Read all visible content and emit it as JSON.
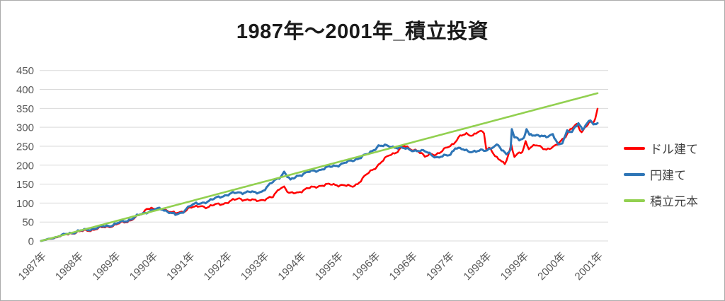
{
  "chart_data": {
    "type": "line",
    "title": "1987年～2001年_積立投資",
    "xlabel": "",
    "ylabel": "",
    "ylim": [
      0,
      450
    ],
    "y_ticks": [
      0,
      50,
      100,
      150,
      200,
      250,
      300,
      350,
      400,
      450
    ],
    "x_tick_labels": [
      "1987年",
      "1988年",
      "1989年",
      "1990年",
      "1991年",
      "1992年",
      "1993年",
      "1994年",
      "1995年",
      "1996年",
      "1996年",
      "1997年",
      "1998年",
      "1999年",
      "2000年",
      "2001年"
    ],
    "x_range_months": [
      0,
      174
    ],
    "grid": "horizontal-only",
    "legend_position": "right",
    "series": [
      {
        "id": "dollar",
        "name": "ドル建て",
        "color": "#FF0000",
        "points": [
          [
            0,
            0
          ],
          [
            5,
            10
          ],
          [
            9.5,
            21
          ],
          [
            14,
            27
          ],
          [
            18,
            33
          ],
          [
            23,
            42
          ],
          [
            27,
            52
          ],
          [
            29,
            60
          ],
          [
            32,
            73
          ],
          [
            33,
            88
          ],
          [
            35,
            86
          ],
          [
            36.5,
            82
          ],
          [
            38,
            84
          ],
          [
            40,
            80
          ],
          [
            42,
            72
          ],
          [
            43.5,
            74
          ],
          [
            45,
            80
          ],
          [
            46.5,
            90
          ],
          [
            48,
            88
          ],
          [
            50,
            92
          ],
          [
            52,
            90
          ],
          [
            54.5,
            95
          ],
          [
            57,
            99
          ],
          [
            59,
            104
          ],
          [
            62,
            112
          ],
          [
            65,
            108
          ],
          [
            67,
            106
          ],
          [
            71,
            112
          ],
          [
            72.5,
            115
          ],
          [
            74.5,
            140
          ],
          [
            76,
            144
          ],
          [
            77.5,
            124
          ],
          [
            80,
            128
          ],
          [
            83,
            137
          ],
          [
            87,
            146
          ],
          [
            91,
            149
          ],
          [
            93.5,
            148
          ],
          [
            97,
            143
          ],
          [
            99,
            152
          ],
          [
            102.5,
            180
          ],
          [
            106,
            205
          ],
          [
            109,
            227
          ],
          [
            111,
            235
          ],
          [
            113.5,
            250
          ],
          [
            115,
            244
          ],
          [
            117.5,
            240
          ],
          [
            120,
            221
          ],
          [
            122,
            232
          ],
          [
            123.5,
            228
          ],
          [
            125,
            233
          ],
          [
            127,
            248
          ],
          [
            129,
            258
          ],
          [
            131,
            275
          ],
          [
            133,
            283
          ],
          [
            135,
            280
          ],
          [
            137,
            288
          ],
          [
            138.5,
            285
          ],
          [
            139.2,
            243
          ],
          [
            140.5,
            247
          ],
          [
            142,
            222
          ],
          [
            143.5,
            212
          ],
          [
            145,
            203
          ],
          [
            146,
            227
          ],
          [
            147,
            254
          ],
          [
            148,
            222
          ],
          [
            149.5,
            230
          ],
          [
            150.5,
            235
          ],
          [
            151.5,
            263
          ],
          [
            152.5,
            246
          ],
          [
            154.5,
            252
          ],
          [
            156,
            248
          ],
          [
            158,
            243
          ],
          [
            159.5,
            246
          ],
          [
            161,
            250
          ],
          [
            162,
            259
          ],
          [
            164,
            278
          ],
          [
            165,
            290
          ],
          [
            166.5,
            300
          ],
          [
            167.5,
            306
          ],
          [
            169,
            288
          ],
          [
            170,
            300
          ],
          [
            171.5,
            315
          ],
          [
            172.5,
            308
          ],
          [
            173.3,
            322
          ],
          [
            174,
            349
          ]
        ]
      },
      {
        "id": "yen",
        "name": "円建て",
        "color": "#2E75B6",
        "points": [
          [
            0,
            0
          ],
          [
            5,
            11
          ],
          [
            9.5,
            22
          ],
          [
            14,
            29
          ],
          [
            18,
            35
          ],
          [
            23,
            44
          ],
          [
            27,
            54
          ],
          [
            29,
            62
          ],
          [
            32,
            72
          ],
          [
            34,
            80
          ],
          [
            36,
            84
          ],
          [
            38,
            83
          ],
          [
            40.5,
            76
          ],
          [
            42,
            68
          ],
          [
            44,
            73
          ],
          [
            45.5,
            88
          ],
          [
            47,
            95
          ],
          [
            49.5,
            98
          ],
          [
            51.5,
            104
          ],
          [
            54,
            110
          ],
          [
            56,
            117
          ],
          [
            58,
            122
          ],
          [
            60.5,
            126
          ],
          [
            62.5,
            128
          ],
          [
            65,
            130
          ],
          [
            67,
            126
          ],
          [
            69,
            131
          ],
          [
            72.5,
            155
          ],
          [
            75,
            172
          ],
          [
            76,
            183
          ],
          [
            77,
            170
          ],
          [
            78,
            159
          ],
          [
            80,
            172
          ],
          [
            83,
            180
          ],
          [
            86,
            186
          ],
          [
            89,
            192
          ],
          [
            92.5,
            200
          ],
          [
            96,
            208
          ],
          [
            99,
            218
          ],
          [
            102.5,
            230
          ],
          [
            105.5,
            252
          ],
          [
            108,
            250
          ],
          [
            111,
            248
          ],
          [
            114.5,
            242
          ],
          [
            118,
            238
          ],
          [
            121,
            234
          ],
          [
            124,
            219
          ],
          [
            125.5,
            222
          ],
          [
            128,
            230
          ],
          [
            129.5,
            246
          ],
          [
            131,
            242
          ],
          [
            133.5,
            238
          ],
          [
            136,
            236
          ],
          [
            139,
            239
          ],
          [
            141,
            248
          ],
          [
            143,
            252
          ],
          [
            144,
            238
          ],
          [
            145.5,
            232
          ],
          [
            146.8,
            240
          ],
          [
            147.2,
            297
          ],
          [
            148,
            272
          ],
          [
            149.5,
            266
          ],
          [
            151,
            272
          ],
          [
            151.8,
            299
          ],
          [
            152.7,
            280
          ],
          [
            154.5,
            276
          ],
          [
            156.5,
            280
          ],
          [
            158,
            276
          ],
          [
            160,
            278
          ],
          [
            161.8,
            254
          ],
          [
            163,
            262
          ],
          [
            164.5,
            290
          ],
          [
            166,
            285
          ],
          [
            167,
            300
          ],
          [
            168,
            312
          ],
          [
            169.3,
            296
          ],
          [
            170.7,
            308
          ],
          [
            171.8,
            318
          ],
          [
            172.7,
            306
          ],
          [
            174,
            311
          ]
        ]
      },
      {
        "id": "principal",
        "name": "積立元本",
        "color": "#92D050",
        "points": [
          [
            0,
            0
          ],
          [
            174,
            390
          ]
        ]
      }
    ]
  },
  "colors": {
    "grid": "#D9D9D9",
    "tick_label": "#595959",
    "title": "#1A1A1A",
    "legend_text": "#404040",
    "background": "#FFFFFF"
  }
}
